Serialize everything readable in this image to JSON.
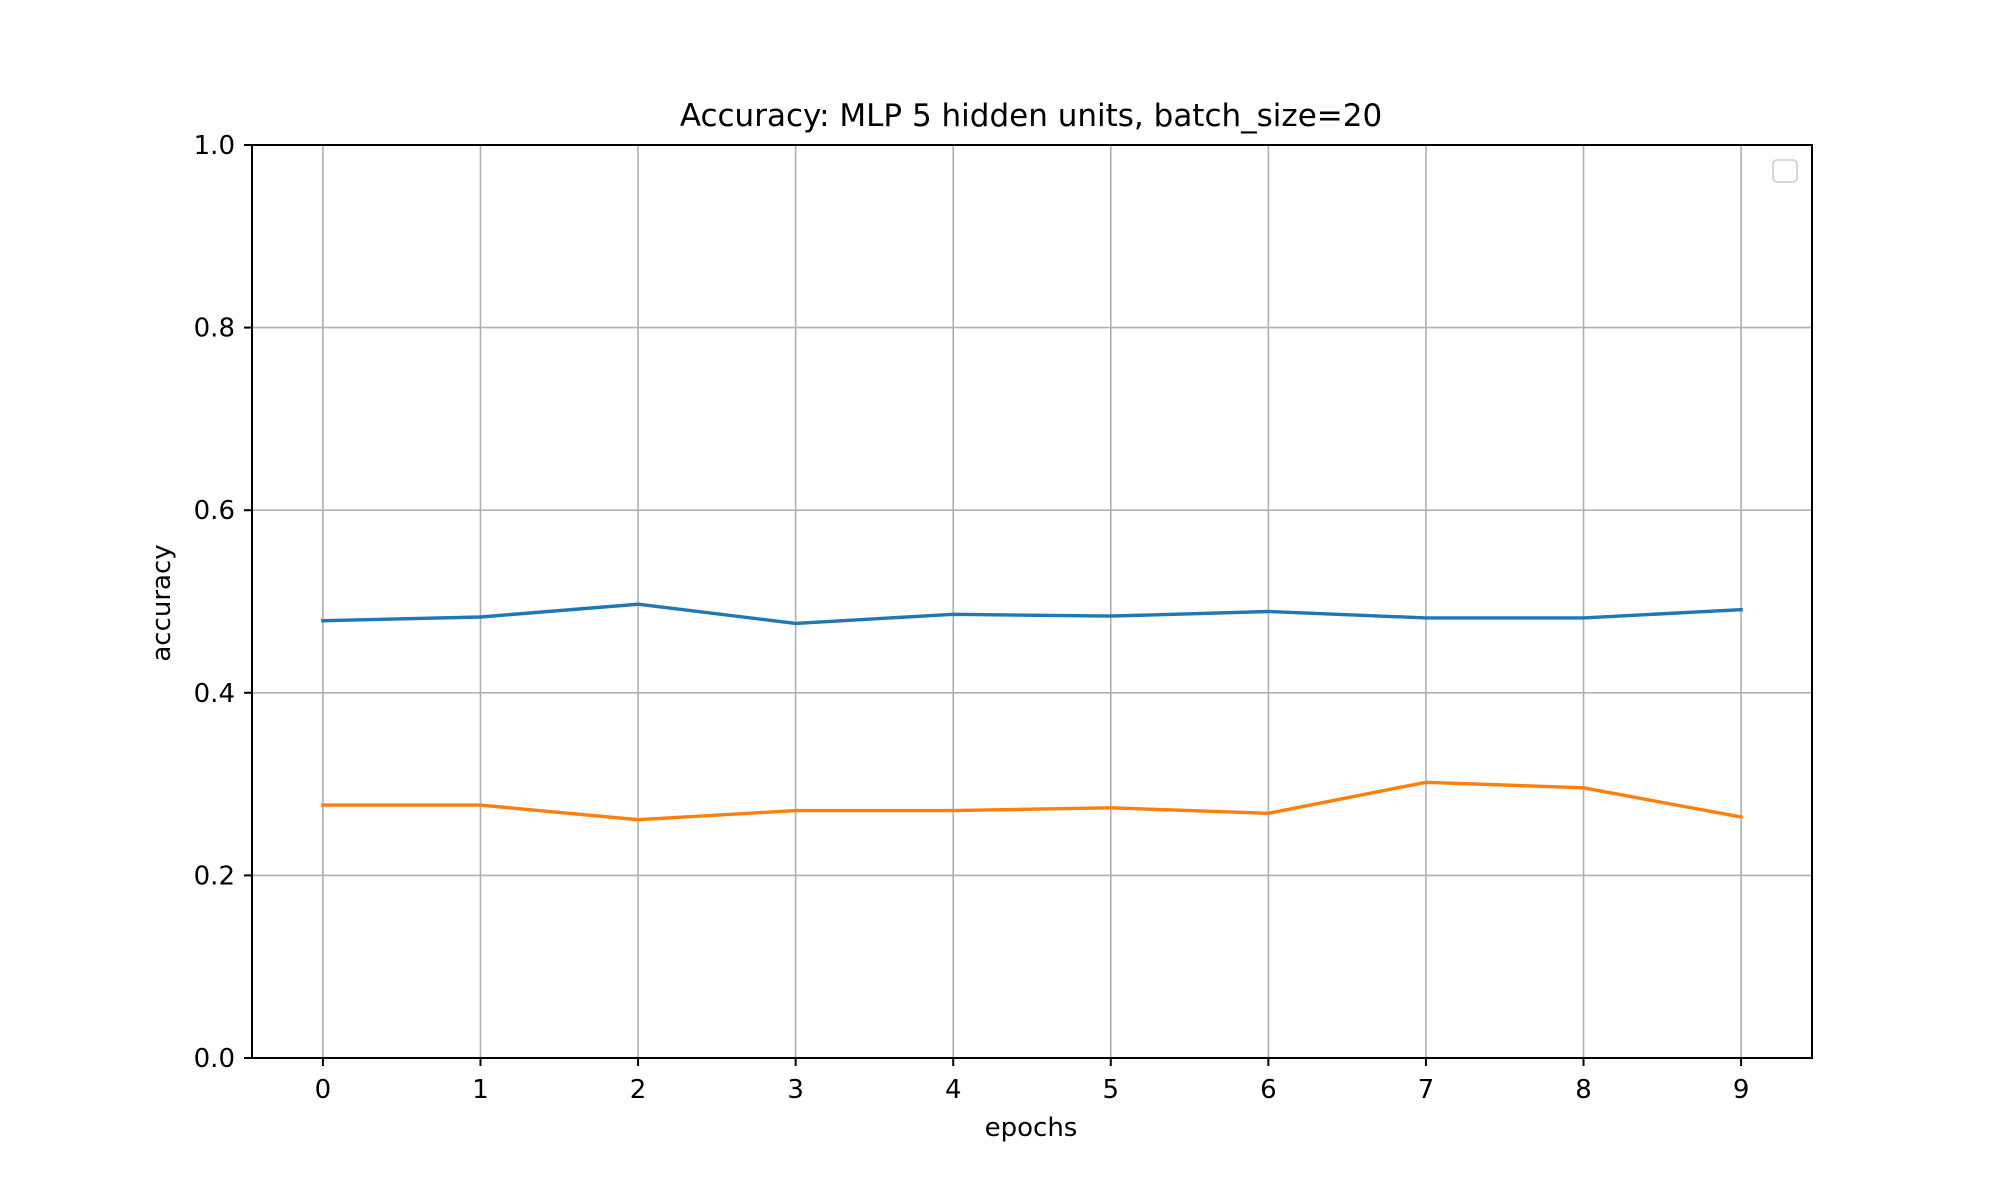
{
  "chart_data": {
    "type": "line",
    "title": "Accuracy: MLP 5 hidden units, batch_size=20",
    "xlabel": "epochs",
    "ylabel": "accuracy",
    "x": [
      0,
      1,
      2,
      3,
      4,
      5,
      6,
      7,
      8,
      9
    ],
    "xlim": [
      -0.45,
      9.45
    ],
    "ylim": [
      0.0,
      1.0
    ],
    "xticks": [
      0,
      1,
      2,
      3,
      4,
      5,
      6,
      7,
      8,
      9
    ],
    "yticks": [
      "0.0",
      "0.2",
      "0.4",
      "0.6",
      "0.8",
      "1.0"
    ],
    "grid": true,
    "legend": "upper right, empty",
    "series": [
      {
        "color": "#1f77b4",
        "values": [
          0.479,
          0.483,
          0.497,
          0.476,
          0.486,
          0.484,
          0.489,
          0.482,
          0.482,
          0.491
        ]
      },
      {
        "color": "#ff7f0e",
        "values": [
          0.277,
          0.277,
          0.261,
          0.271,
          0.271,
          0.274,
          0.268,
          0.302,
          0.296,
          0.264
        ]
      }
    ]
  }
}
